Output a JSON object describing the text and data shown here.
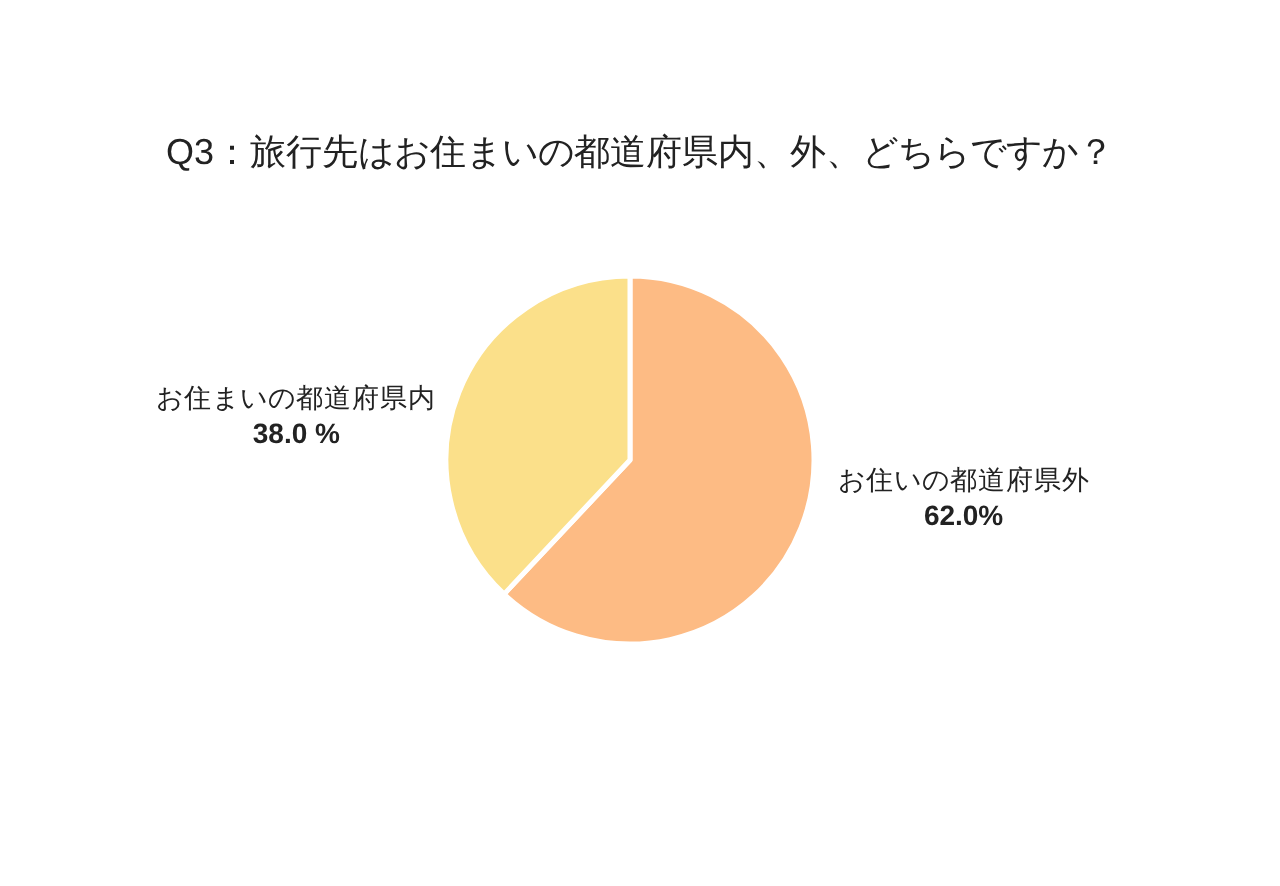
{
  "chart_data": {
    "type": "pie",
    "title": "Q3：旅行先はお住まいの都道府県内、外、どちらですか？",
    "categories": [
      "お住いの都道府県外",
      "お住まいの都道府県内"
    ],
    "values": [
      62.0,
      38.0
    ],
    "colors": [
      "#fdbb84",
      "#fbe08a"
    ],
    "value_labels": [
      "62.0%",
      "38.0 %"
    ],
    "legend": false
  }
}
